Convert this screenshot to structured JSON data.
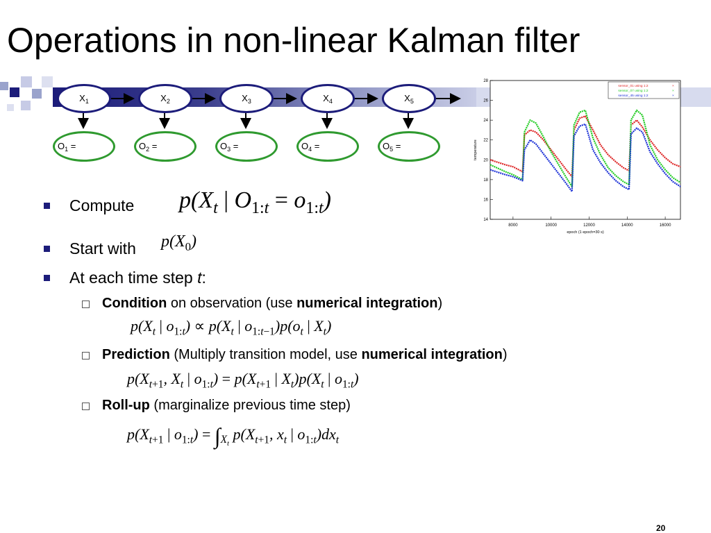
{
  "slide": {
    "title": "Operations in non-linear Kalman filter",
    "page_number": "20"
  },
  "model": {
    "states": [
      {
        "base": "X",
        "index": "1"
      },
      {
        "base": "X",
        "index": "2"
      },
      {
        "base": "X",
        "index": "3"
      },
      {
        "base": "X",
        "index": "4"
      },
      {
        "base": "X",
        "index": "5"
      }
    ],
    "observations": [
      {
        "base": "O",
        "index": "1",
        "suffix": " ="
      },
      {
        "base": "O",
        "index": "2",
        "suffix": " ="
      },
      {
        "base": "O",
        "index": "3",
        "suffix": " ="
      },
      {
        "base": "O",
        "index": "4",
        "suffix": " ="
      },
      {
        "base": "O",
        "index": "5",
        "suffix": " ="
      }
    ],
    "colors": {
      "state_border": "#1c1c7a",
      "obs_border": "#2f9a2f",
      "arrow": "#000000"
    }
  },
  "bullets": {
    "compute": "Compute",
    "start_with": "Start with",
    "each_step_pre": "At each time step ",
    "each_step_var": "t",
    "each_step_post": ":"
  },
  "subbullets": {
    "condition_bold": "Condition",
    "condition_mid": " on observation (use ",
    "condition_bold2": "numerical integration",
    "condition_end": ")",
    "prediction_bold": "Prediction",
    "prediction_mid": " (Multiply transition model, use ",
    "prediction_bold2": "numerical integration",
    "prediction_end": ")",
    "rollup_bold": "Roll-up",
    "rollup_mid": " (marginalize previous time step)"
  },
  "chart_data": {
    "type": "line",
    "xlabel": "epoch (1 epoch=30 s)",
    "ylabel": "temperature",
    "xlim": [
      6800,
      16800
    ],
    "ylim": [
      14,
      28
    ],
    "xticks": [
      "8000",
      "10000",
      "12000",
      "14000",
      "16000"
    ],
    "yticks": [
      "14",
      "16",
      "18",
      "20",
      "22",
      "24",
      "26",
      "28"
    ],
    "legend_position": "top-right",
    "series": [
      {
        "name": "sensor_01 using 1:2",
        "color": "#dd2222",
        "x": [
          6800,
          7600,
          8000,
          8500,
          8600,
          8900,
          9200,
          9600,
          10000,
          10400,
          10800,
          11100,
          11200,
          11500,
          11800,
          12200,
          12600,
          13000,
          13400,
          13800,
          14100,
          14200,
          14500,
          14800,
          15200,
          15600,
          16000,
          16400,
          16800
        ],
        "y": [
          20.0,
          19.5,
          19.3,
          18.8,
          22.5,
          23.0,
          22.8,
          22.0,
          21.0,
          20.0,
          19.0,
          18.3,
          23.0,
          24.2,
          24.4,
          23.0,
          21.5,
          20.5,
          19.8,
          19.2,
          18.9,
          23.5,
          24.0,
          23.3,
          22.0,
          21.0,
          20.2,
          19.6,
          19.3
        ]
      },
      {
        "name": "sensor_07 using 1:2",
        "color": "#22cc22",
        "x": [
          6800,
          7600,
          8000,
          8500,
          8600,
          8900,
          9200,
          9600,
          10000,
          10400,
          10800,
          11100,
          11200,
          11500,
          11800,
          12200,
          12600,
          13000,
          13400,
          13800,
          14100,
          14200,
          14500,
          14800,
          15200,
          15600,
          16000,
          16400,
          16800
        ],
        "y": [
          19.5,
          18.8,
          18.5,
          18.0,
          22.8,
          24.0,
          23.7,
          22.3,
          20.8,
          19.5,
          18.2,
          17.3,
          23.5,
          24.8,
          25.0,
          22.2,
          20.5,
          19.2,
          18.4,
          17.8,
          17.5,
          24.0,
          25.0,
          24.5,
          21.5,
          20.0,
          19.0,
          18.2,
          17.7
        ]
      },
      {
        "name": "sensor_45 using 1:2",
        "color": "#1a2fd6",
        "x": [
          6800,
          7600,
          8000,
          8500,
          8600,
          8900,
          9200,
          9600,
          10000,
          10400,
          10800,
          11100,
          11200,
          11500,
          11800,
          12200,
          12600,
          13000,
          13400,
          13800,
          14100,
          14200,
          14500,
          14800,
          15200,
          15600,
          16000,
          16400,
          16800
        ],
        "y": [
          19.0,
          18.5,
          18.3,
          17.9,
          21.0,
          22.0,
          21.6,
          20.6,
          19.6,
          18.6,
          17.6,
          16.8,
          22.4,
          23.4,
          23.6,
          21.0,
          19.7,
          18.7,
          17.9,
          17.3,
          17.0,
          22.6,
          23.2,
          22.8,
          20.8,
          19.6,
          18.6,
          17.8,
          17.3
        ]
      }
    ]
  }
}
